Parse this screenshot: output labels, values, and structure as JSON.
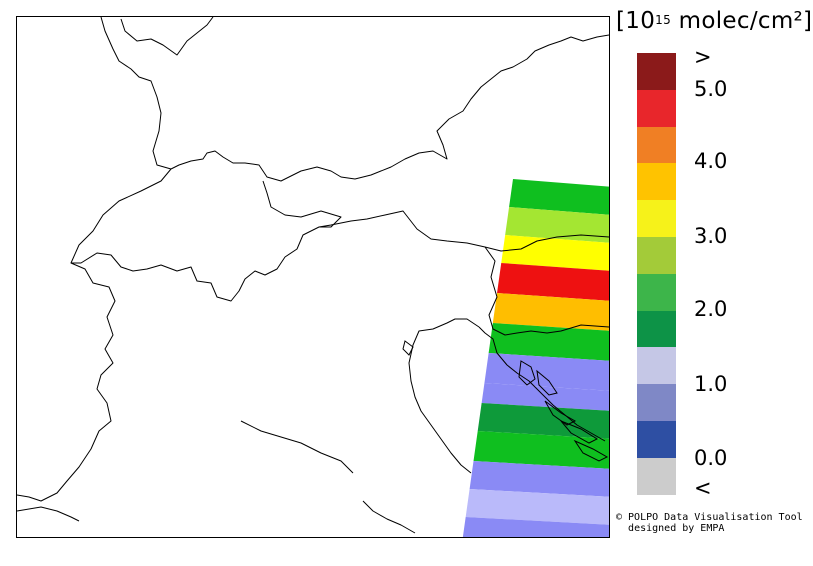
{
  "legend": {
    "unit_exponent": "15",
    "unit_suffix": "molec/cm²",
    "unit_prefix": "10",
    "ticks": [
      ">",
      "5.0",
      "4.0",
      "3.0",
      "2.0",
      "1.0",
      "0.0",
      "<"
    ],
    "colors_top_to_bottom": [
      "#8b1a1a",
      "#e8262b",
      "#f07f24",
      "#ffc300",
      "#f6f21a",
      "#a3cb39",
      "#3db54a",
      "#0d9347",
      "#c5c7e6",
      "#7f88c6",
      "#2e4fa3",
      "#cccccc"
    ]
  },
  "credit": {
    "line1": "© POLPO Data Visualisation Tool",
    "line2": "designed by EMPA"
  },
  "map": {
    "region": "Alps, Northern Italy and Adriatic",
    "swath_bands_top_to_bottom": [
      {
        "value_class": "2.0-2.5",
        "color": "#0fbf1f"
      },
      {
        "value_class": "2.5-3.0",
        "color": "#a4e632"
      },
      {
        "value_class": "3.0-3.5",
        "color": "#ffff00"
      },
      {
        "value_class": ">5.0",
        "color": "#ee1111"
      },
      {
        "value_class": "4.0-4.5",
        "color": "#ffbe00"
      },
      {
        "value_class": "2.0-2.5",
        "color": "#0fbf1f"
      },
      {
        "value_class": "0.5-1.0",
        "color": "#8a8af5"
      },
      {
        "value_class": "0.5-1.0",
        "color": "#8a8af5"
      },
      {
        "value_class": "1.5-2.0",
        "color": "#0e9a3a"
      },
      {
        "value_class": "2.0-2.5",
        "color": "#0fbf1f"
      },
      {
        "value_class": "0.5-1.0",
        "color": "#8a8af5"
      },
      {
        "value_class": "1.0-1.5",
        "color": "#babafa"
      },
      {
        "value_class": "0.5-1.0",
        "color": "#8a8af5"
      }
    ]
  }
}
